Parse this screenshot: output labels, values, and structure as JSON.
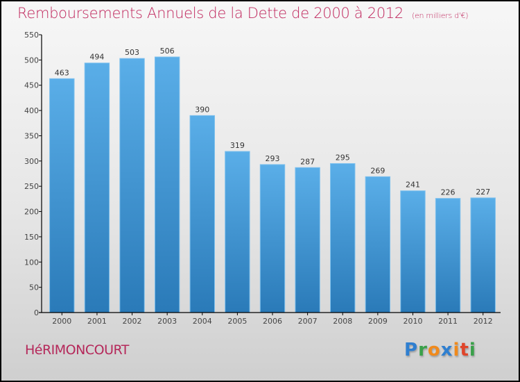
{
  "header": {
    "title": "Remboursements Annuels de la Dette de 2000 à 2012",
    "subtitle": "(en milliers d'€)"
  },
  "footer": {
    "commune": "HéRIMONCOURT",
    "logo": [
      {
        "char": "P",
        "color": "#2f7fd0"
      },
      {
        "char": "r",
        "color": "#3aa14a"
      },
      {
        "char": "o",
        "color": "#f08a1c"
      },
      {
        "char": "x",
        "color": "#2f7fd0"
      },
      {
        "char": "i",
        "color": "#f08a1c"
      },
      {
        "char": "t",
        "color": "#e0452a"
      },
      {
        "char": "i",
        "color": "#3aa14a"
      }
    ]
  },
  "colors": {
    "bar_top": "#5aaee8",
    "bar_bottom": "#2a7ab8",
    "title": "#c0285e"
  },
  "chart_data": {
    "type": "bar",
    "title": "Remboursements Annuels de la Dette de 2000 à 2012",
    "subtitle": "(en milliers d'€)",
    "xlabel": "",
    "ylabel": "",
    "categories": [
      "2000",
      "2001",
      "2002",
      "2003",
      "2004",
      "2005",
      "2006",
      "2007",
      "2008",
      "2009",
      "2010",
      "2011",
      "2012"
    ],
    "values": [
      463,
      494,
      503,
      506,
      390,
      319,
      293,
      287,
      295,
      269,
      241,
      226,
      227
    ],
    "ylim": [
      0,
      550
    ],
    "yticks": [
      0,
      50,
      100,
      150,
      200,
      250,
      300,
      350,
      400,
      450,
      500,
      550
    ],
    "grid": false,
    "legend": "none"
  }
}
